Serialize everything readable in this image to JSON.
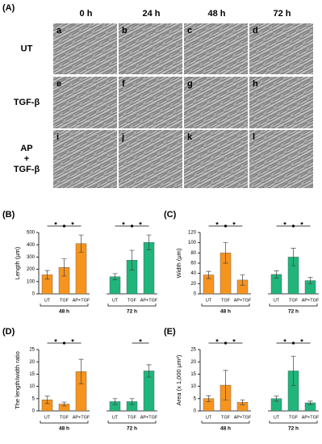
{
  "panel_a": {
    "label": "(A)",
    "columns": [
      "0 h",
      "24 h",
      "48 h",
      "72 h"
    ],
    "rows": [
      [
        "UT"
      ],
      [
        "TGF-β"
      ],
      [
        "AP",
        "+",
        "TGF-β"
      ]
    ],
    "cells": [
      "a",
      "b",
      "c",
      "d",
      "e",
      "f",
      "g",
      "h",
      "i",
      "j",
      "k",
      "l"
    ]
  },
  "chart_data": [
    {
      "type": "bar",
      "label": "(B)",
      "y_label": "Length (μm)",
      "ylim": [
        0,
        500
      ],
      "yticks": [
        0,
        100,
        200,
        300,
        400,
        500
      ],
      "groups": [
        {
          "name": "48 h",
          "color": "#f7941d",
          "categories": [
            "UT",
            "TGF",
            "AP+TGF"
          ],
          "values": [
            155,
            215,
            410
          ],
          "errors": [
            35,
            70,
            70
          ],
          "stars": [
            "*",
            "*"
          ]
        },
        {
          "name": "72 h",
          "color": "#1fb57b",
          "categories": [
            "UT",
            "TGF",
            "AP+TGF"
          ],
          "values": [
            140,
            275,
            420
          ],
          "errors": [
            25,
            80,
            60
          ],
          "stars": [
            "*",
            "*"
          ]
        }
      ]
    },
    {
      "type": "bar",
      "label": "(C)",
      "y_label": "Width (μm)",
      "ylim": [
        0,
        120
      ],
      "yticks": [
        0,
        20,
        40,
        60,
        80,
        100,
        120
      ],
      "groups": [
        {
          "name": "48 h",
          "color": "#f7941d",
          "categories": [
            "UT",
            "TGF",
            "AP+TGF"
          ],
          "values": [
            37,
            80,
            27
          ],
          "errors": [
            7,
            20,
            10
          ],
          "stars": [
            "*",
            "*"
          ]
        },
        {
          "name": "72 h",
          "color": "#1fb57b",
          "categories": [
            "UT",
            "TGF",
            "AP+TGF"
          ],
          "values": [
            38,
            72,
            26
          ],
          "errors": [
            7,
            17,
            6
          ],
          "stars": [
            "*",
            "*"
          ]
        }
      ]
    },
    {
      "type": "bar",
      "label": "(D)",
      "y_label": "The length/width ratio",
      "ylim": [
        0,
        25
      ],
      "yticks": [
        0,
        5,
        10,
        15,
        20,
        25
      ],
      "groups": [
        {
          "name": "48 h",
          "color": "#f7941d",
          "categories": [
            "UT",
            "TGF",
            "AP+TGF"
          ],
          "values": [
            4.5,
            2.8,
            16
          ],
          "errors": [
            1.5,
            0.8,
            5
          ],
          "stars": [
            "*",
            "*"
          ]
        },
        {
          "name": "72 h",
          "color": "#1fb57b",
          "categories": [
            "UT",
            "TGF",
            "AP+TGF"
          ],
          "values": [
            3.8,
            3.8,
            16.3
          ],
          "errors": [
            1.2,
            1.2,
            2.5
          ],
          "stars": [
            "*"
          ]
        }
      ]
    },
    {
      "type": "bar",
      "label": "(E)",
      "y_label": "Area (x 1,000 μm²)",
      "ylim": [
        0,
        25
      ],
      "yticks": [
        0,
        5,
        10,
        15,
        20,
        25
      ],
      "groups": [
        {
          "name": "48 h",
          "color": "#f7941d",
          "categories": [
            "UT",
            "TGF",
            "AP+TGF"
          ],
          "values": [
            5,
            10.5,
            3.5
          ],
          "errors": [
            1.2,
            6,
            1
          ],
          "stars": [
            "*",
            "*"
          ]
        },
        {
          "name": "72 h",
          "color": "#1fb57b",
          "categories": [
            "UT",
            "TGF",
            "AP+TGF"
          ],
          "values": [
            5,
            16.3,
            3.3
          ],
          "errors": [
            1,
            6,
            0.7
          ],
          "stars": [
            "*",
            "*"
          ]
        }
      ]
    }
  ]
}
